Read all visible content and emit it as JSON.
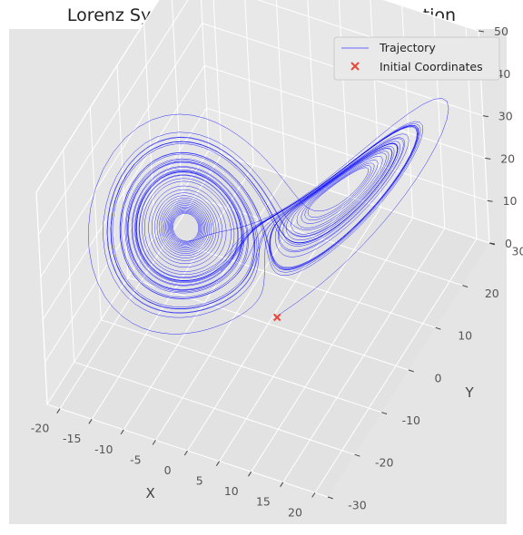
{
  "chart_data": {
    "type": "line",
    "projection": "3d",
    "title": "Lorenz System - jax.lax.scan Implementation",
    "xlabel": "X",
    "ylabel": "Y",
    "zlabel": "",
    "xlim": [
      -22,
      22
    ],
    "ylim": [
      -30,
      30
    ],
    "zlim": [
      0,
      50
    ],
    "xticks": [
      -20,
      -15,
      -10,
      -5,
      0,
      5,
      10,
      15,
      20
    ],
    "yticks": [
      -30,
      -20,
      -10,
      0,
      10,
      20,
      30
    ],
    "zticks": [
      0,
      10,
      20,
      30,
      40,
      50
    ],
    "grid": true,
    "legend_position": "upper right",
    "series": [
      {
        "name": "Trajectory",
        "kind": "line",
        "color": "#0000ff",
        "system": "lorenz",
        "parameters": {
          "sigma": 10,
          "rho": 28,
          "beta": 2.667
        },
        "initial_state": [
          1.0,
          1.0,
          1.0
        ]
      },
      {
        "name": "Initial Coordinates",
        "kind": "scatter",
        "marker": "x",
        "color": "#e8473a",
        "points": [
          [
            1.0,
            1.0,
            1.0
          ]
        ]
      }
    ],
    "colors": {
      "panel": "#e5e5e5",
      "grid": "#ffffff",
      "figure": "#ffffff"
    }
  }
}
